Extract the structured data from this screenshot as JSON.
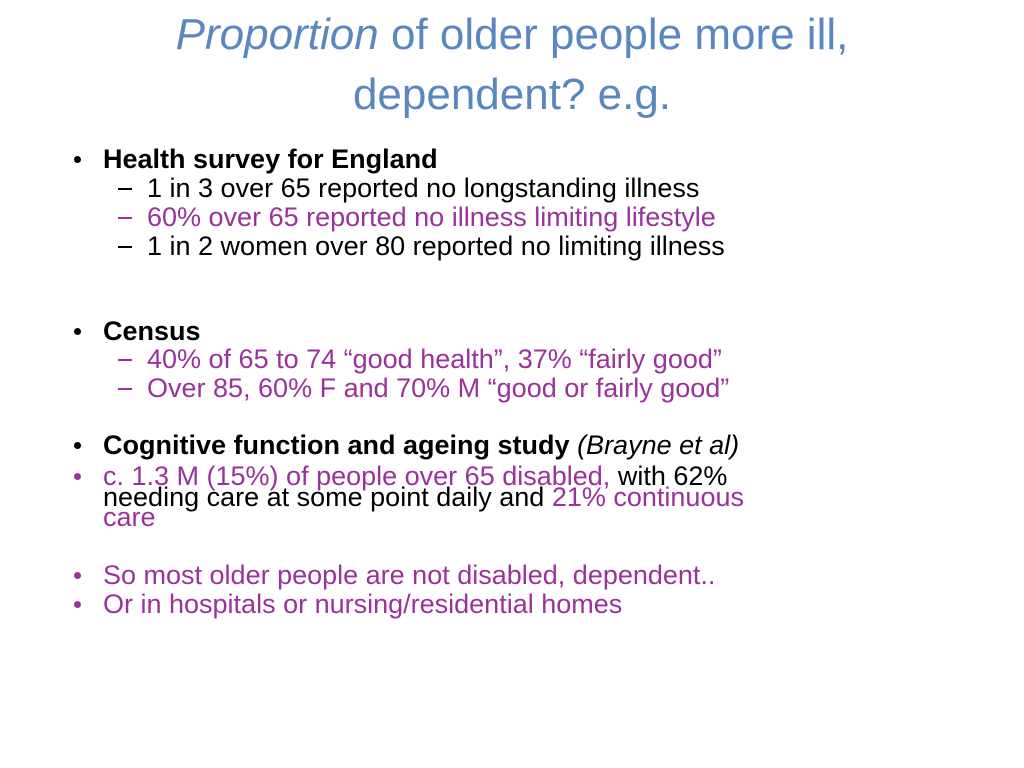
{
  "title": {
    "italic": "Proportion",
    "line1": "of older people more ill,",
    "line2": "dependent? e.g."
  },
  "bullets": [
    {
      "heading": "Health survey for England",
      "subitems": [
        "1 in 3 over 65 reported no longstanding illness",
        "60% over 65 reported no illness limiting lifestyle",
        "1 in 2 women over 80 reported no limiting illness"
      ]
    },
    {
      "heading": "Census",
      "subitems": [
        "40% of 65 to 74 “good health”, 37% “fairly good”",
        "Over 85, 60% F and 70% M “good or fairly good”"
      ]
    },
    {
      "heading": "Cognitive function and ageing study",
      "note": "(Brayne et al)"
    },
    {
      "lines": [
        [
          "c. 1.3 M (15%) of people over 65 disabled,",
          "with 62%"
        ],
        [
          "needing care at some point daily and",
          "21% continuous"
        ],
        [
          "care"
        ]
      ]
    },
    {
      "text": "So most older people are not disabled, dependent.."
    },
    {
      "text": "Or in hospitals or nursing/residential homes"
    }
  ]
}
